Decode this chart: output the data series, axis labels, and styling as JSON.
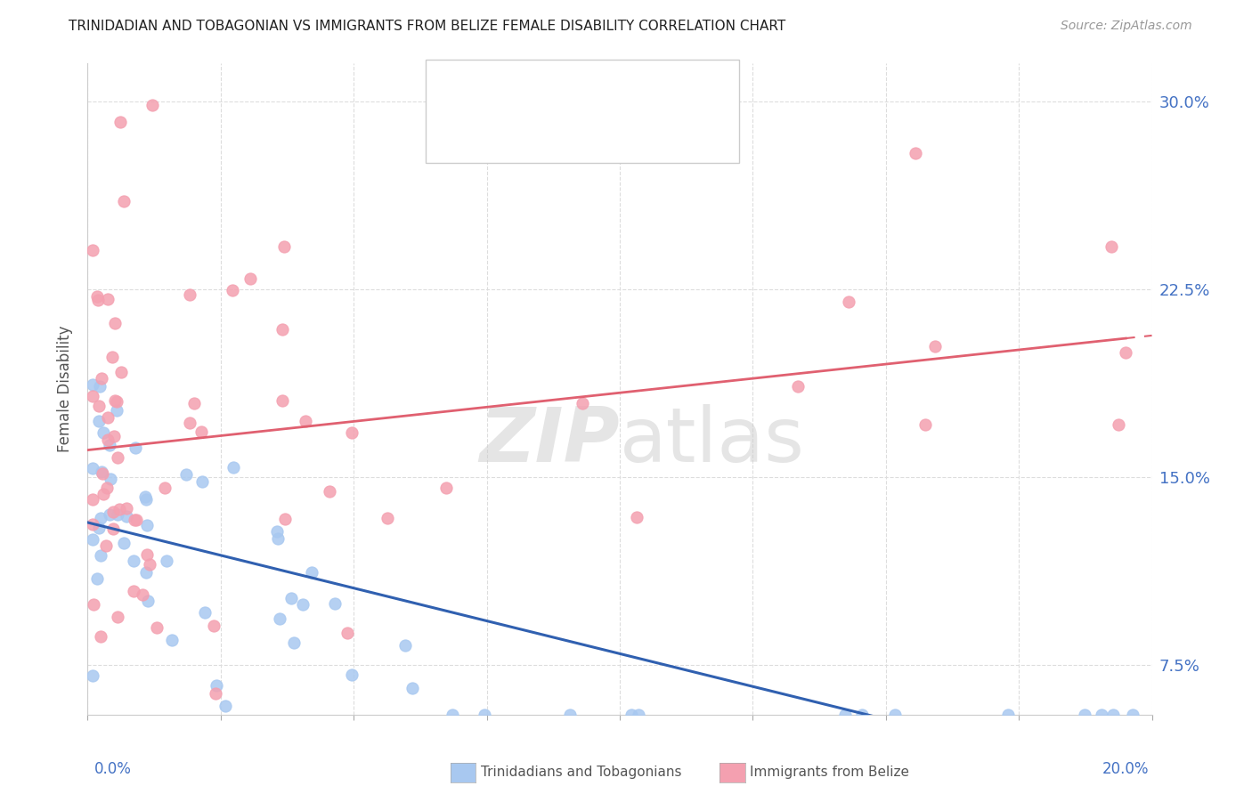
{
  "title": "TRINIDADIAN AND TOBAGONIAN VS IMMIGRANTS FROM BELIZE FEMALE DISABILITY CORRELATION CHART",
  "source": "Source: ZipAtlas.com",
  "ylabel": "Female Disability",
  "blue_color": "#a8c8f0",
  "pink_color": "#f4a0b0",
  "line_blue_color": "#3060b0",
  "line_pink_color": "#e06070",
  "watermark": "ZIPatlas",
  "blue_seed": 42,
  "pink_seed": 7,
  "N_blue": 58,
  "N_pink": 68,
  "xlim": [
    0.0,
    0.2
  ],
  "ylim": [
    0.055,
    0.315
  ],
  "yticks": [
    0.075,
    0.15,
    0.225,
    0.3
  ],
  "ytick_labels": [
    "7.5%",
    "15.0%",
    "22.5%",
    "30.0%"
  ]
}
